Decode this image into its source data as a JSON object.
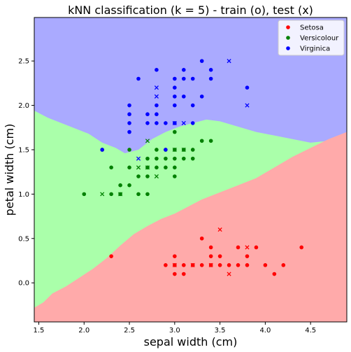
{
  "chart_data": {
    "type": "scatter",
    "title": "kNN classification (k = 5) - train (o), test (x)",
    "xlabel": "sepal width (cm)",
    "ylabel": "petal width (cm)",
    "xlim": [
      1.45,
      4.9
    ],
    "ylim": [
      -0.44,
      2.99
    ],
    "xticks": [
      1.5,
      2.0,
      2.5,
      3.0,
      3.5,
      4.0,
      4.5
    ],
    "xtick_labels": [
      "1.5",
      "2.0",
      "2.5",
      "3.0",
      "3.5",
      "4.0",
      "4.5"
    ],
    "yticks": [
      0.0,
      0.5,
      1.0,
      1.5,
      2.0,
      2.5
    ],
    "ytick_labels": [
      "0.0",
      "0.5",
      "1.0",
      "1.5",
      "2.0",
      "2.5"
    ],
    "grid": false,
    "legend_position": "top-right",
    "region_colors": {
      "Setosa": "#ffaaaa",
      "Versicolour": "#aaffaa",
      "Virginica": "#aaaaff"
    },
    "decision_boundaries": {
      "setosa_versicolour": [
        [
          1.45,
          -0.28
        ],
        [
          1.55,
          -0.22
        ],
        [
          1.65,
          -0.12
        ],
        [
          1.8,
          -0.04
        ],
        [
          1.95,
          0.06
        ],
        [
          2.1,
          0.16
        ],
        [
          2.25,
          0.28
        ],
        [
          2.4,
          0.42
        ],
        [
          2.55,
          0.55
        ],
        [
          2.7,
          0.64
        ],
        [
          2.85,
          0.72
        ],
        [
          3.0,
          0.78
        ],
        [
          3.15,
          0.86
        ],
        [
          3.3,
          0.94
        ],
        [
          3.5,
          1.02
        ],
        [
          3.7,
          1.1
        ],
        [
          3.9,
          1.18
        ],
        [
          4.1,
          1.3
        ],
        [
          4.3,
          1.42
        ],
        [
          4.5,
          1.52
        ],
        [
          4.7,
          1.62
        ],
        [
          4.9,
          1.7
        ]
      ],
      "versicolour_virginica": [
        [
          1.45,
          1.94
        ],
        [
          1.6,
          1.86
        ],
        [
          1.75,
          1.8
        ],
        [
          1.9,
          1.74
        ],
        [
          2.05,
          1.68
        ],
        [
          2.2,
          1.58
        ],
        [
          2.35,
          1.52
        ],
        [
          2.45,
          1.46
        ],
        [
          2.6,
          1.5
        ],
        [
          2.75,
          1.62
        ],
        [
          2.9,
          1.7
        ],
        [
          3.05,
          1.76
        ],
        [
          3.2,
          1.8
        ],
        [
          3.35,
          1.84
        ],
        [
          3.5,
          1.82
        ],
        [
          3.7,
          1.76
        ],
        [
          3.9,
          1.7
        ],
        [
          4.1,
          1.66
        ],
        [
          4.3,
          1.62
        ],
        [
          4.5,
          1.58
        ],
        [
          4.7,
          1.6
        ],
        [
          4.9,
          1.62
        ]
      ]
    },
    "series": [
      {
        "name": "Setosa",
        "color": "#ff0000",
        "train": [
          [
            2.3,
            0.3
          ],
          [
            2.9,
            0.2
          ],
          [
            3.0,
            0.1
          ],
          [
            3.0,
            0.2
          ],
          [
            3.0,
            0.3
          ],
          [
            3.1,
            0.1
          ],
          [
            3.1,
            0.2
          ],
          [
            3.2,
            0.2
          ],
          [
            3.3,
            0.2
          ],
          [
            3.3,
            0.5
          ],
          [
            3.4,
            0.2
          ],
          [
            3.4,
            0.3
          ],
          [
            3.4,
            0.4
          ],
          [
            3.5,
            0.2
          ],
          [
            3.5,
            0.3
          ],
          [
            3.6,
            0.2
          ],
          [
            3.7,
            0.2
          ],
          [
            3.7,
            0.4
          ],
          [
            3.8,
            0.2
          ],
          [
            3.8,
            0.3
          ],
          [
            3.9,
            0.4
          ],
          [
            4.0,
            0.2
          ],
          [
            4.1,
            0.1
          ],
          [
            4.2,
            0.2
          ],
          [
            4.4,
            0.4
          ]
        ],
        "test": [
          [
            3.0,
            0.2
          ],
          [
            3.2,
            0.2
          ],
          [
            3.4,
            0.2
          ],
          [
            3.5,
            0.6
          ],
          [
            3.6,
            0.1
          ],
          [
            3.8,
            0.4
          ]
        ]
      },
      {
        "name": "Versicolour",
        "color": "#008000",
        "train": [
          [
            2.0,
            1.0
          ],
          [
            2.2,
            1.5
          ],
          [
            2.3,
            1.0
          ],
          [
            2.3,
            1.3
          ],
          [
            2.4,
            1.0
          ],
          [
            2.4,
            1.1
          ],
          [
            2.5,
            1.1
          ],
          [
            2.5,
            1.3
          ],
          [
            2.5,
            1.5
          ],
          [
            2.6,
            1.0
          ],
          [
            2.6,
            1.2
          ],
          [
            2.7,
            1.0
          ],
          [
            2.7,
            1.2
          ],
          [
            2.7,
            1.3
          ],
          [
            2.7,
            1.4
          ],
          [
            2.8,
            1.3
          ],
          [
            2.8,
            1.4
          ],
          [
            2.8,
            1.5
          ],
          [
            2.9,
            1.3
          ],
          [
            2.9,
            1.4
          ],
          [
            2.9,
            1.5
          ],
          [
            3.0,
            1.2
          ],
          [
            3.0,
            1.3
          ],
          [
            3.0,
            1.4
          ],
          [
            3.0,
            1.5
          ],
          [
            3.0,
            1.7
          ],
          [
            3.1,
            1.4
          ],
          [
            3.1,
            1.5
          ],
          [
            3.2,
            1.4
          ],
          [
            3.2,
            1.5
          ],
          [
            3.3,
            1.6
          ],
          [
            3.4,
            1.6
          ]
        ],
        "test": [
          [
            2.2,
            1.0
          ],
          [
            2.4,
            1.0
          ],
          [
            2.6,
            1.3
          ],
          [
            2.7,
            1.3
          ],
          [
            2.7,
            1.6
          ],
          [
            2.8,
            1.2
          ],
          [
            3.0,
            1.5
          ],
          [
            3.1,
            1.5
          ]
        ]
      },
      {
        "name": "Virginica",
        "color": "#0000ff",
        "train": [
          [
            2.2,
            1.5
          ],
          [
            2.5,
            1.7
          ],
          [
            2.5,
            1.8
          ],
          [
            2.5,
            1.9
          ],
          [
            2.5,
            2.0
          ],
          [
            2.6,
            2.3
          ],
          [
            2.7,
            1.8
          ],
          [
            2.7,
            1.9
          ],
          [
            2.8,
            1.8
          ],
          [
            2.8,
            1.9
          ],
          [
            2.8,
            2.0
          ],
          [
            2.8,
            2.4
          ],
          [
            2.9,
            1.8
          ],
          [
            3.0,
            1.8
          ],
          [
            3.0,
            2.0
          ],
          [
            3.0,
            2.1
          ],
          [
            3.0,
            2.2
          ],
          [
            3.0,
            2.3
          ],
          [
            3.1,
            2.1
          ],
          [
            3.1,
            2.3
          ],
          [
            3.1,
            2.4
          ],
          [
            3.2,
            1.8
          ],
          [
            3.2,
            2.0
          ],
          [
            3.2,
            2.3
          ],
          [
            3.3,
            2.1
          ],
          [
            3.3,
            2.5
          ],
          [
            3.4,
            2.3
          ],
          [
            3.4,
            2.4
          ],
          [
            3.8,
            2.2
          ],
          [
            2.9,
            1.5
          ]
        ],
        "test": [
          [
            2.6,
            1.4
          ],
          [
            2.8,
            2.1
          ],
          [
            2.8,
            2.2
          ],
          [
            3.0,
            1.8
          ],
          [
            3.1,
            1.8
          ],
          [
            3.6,
            2.5
          ],
          [
            3.8,
            2.0
          ]
        ]
      }
    ]
  }
}
